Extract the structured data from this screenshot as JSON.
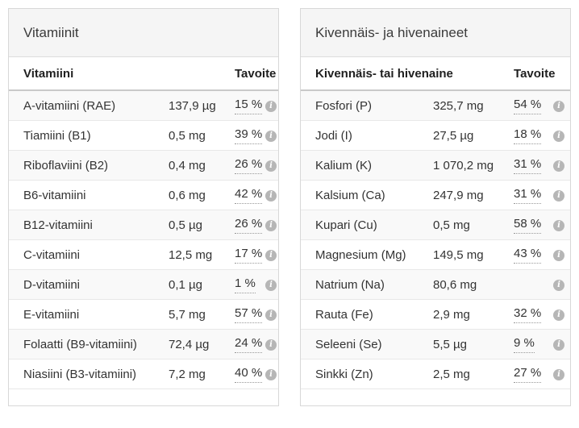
{
  "colors": {
    "card_border": "#d8d8d8",
    "title_background": "#f5f5f5",
    "row_alternate": "#f9f9f9",
    "info_icon": "#b6b6b6",
    "dotted_underline": "#999999"
  },
  "cards": [
    {
      "title": "Vitamiinit",
      "columns": {
        "name": "Vitamiini",
        "target": "Tavoite"
      },
      "rows": [
        {
          "name": "A-vitamiini (RAE)",
          "amount": "137,9 µg",
          "target": "15 %"
        },
        {
          "name": "Tiamiini (B1)",
          "amount": "0,5 mg",
          "target": "39 %"
        },
        {
          "name": "Riboflaviini (B2)",
          "amount": "0,4 mg",
          "target": "26 %"
        },
        {
          "name": "B6-vitamiini",
          "amount": "0,6 mg",
          "target": "42 %"
        },
        {
          "name": "B12-vitamiini",
          "amount": "0,5 µg",
          "target": "26 %"
        },
        {
          "name": "C-vitamiini",
          "amount": "12,5 mg",
          "target": "17 %"
        },
        {
          "name": "D-vitamiini",
          "amount": "0,1 µg",
          "target": "1 %"
        },
        {
          "name": "E-vitamiini",
          "amount": "5,7 mg",
          "target": "57 %"
        },
        {
          "name": "Folaatti (B9-vitamiini)",
          "amount": "72,4 µg",
          "target": "24 %"
        },
        {
          "name": "Niasiini (B3-vitamiini)",
          "amount": "7,2 mg",
          "target": "40 %"
        }
      ]
    },
    {
      "title": "Kivennäis- ja hivenaineet",
      "columns": {
        "name": "Kivennäis- tai hivenaine",
        "target": "Tavoite"
      },
      "rows": [
        {
          "name": "Fosfori (P)",
          "amount": "325,7 mg",
          "target": "54 %"
        },
        {
          "name": "Jodi (I)",
          "amount": "27,5 µg",
          "target": "18 %"
        },
        {
          "name": "Kalium (K)",
          "amount": "1 070,2 mg",
          "target": "31 %"
        },
        {
          "name": "Kalsium (Ca)",
          "amount": "247,9 mg",
          "target": "31 %"
        },
        {
          "name": "Kupari (Cu)",
          "amount": "0,5 mg",
          "target": "58 %"
        },
        {
          "name": "Magnesium (Mg)",
          "amount": "149,5 mg",
          "target": "43 %"
        },
        {
          "name": "Natrium (Na)",
          "amount": "80,6 mg",
          "target": ""
        },
        {
          "name": "Rauta (Fe)",
          "amount": "2,9 mg",
          "target": "32 %"
        },
        {
          "name": "Seleeni (Se)",
          "amount": "5,5 µg",
          "target": "9 %"
        },
        {
          "name": "Sinkki (Zn)",
          "amount": "2,5 mg",
          "target": "27 %"
        }
      ]
    }
  ]
}
